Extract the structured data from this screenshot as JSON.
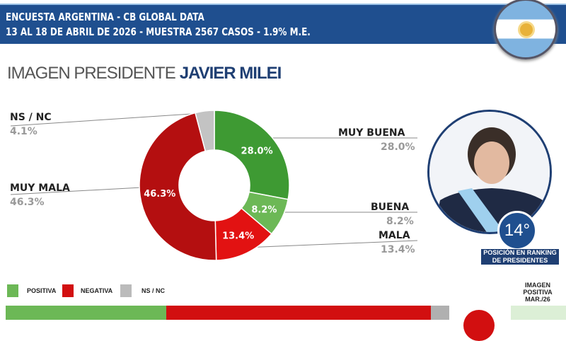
{
  "header": {
    "line1": "ENCUESTA ARGENTINA - CB GLOBAL DATA",
    "line2": "13 AL 18 DE ABRIL DE 2026 - MUESTRA 2567 CASOS - 1.9% M.E."
  },
  "title": {
    "prefix": "IMAGEN PRESIDENTE",
    "name": "JAVIER MILEI"
  },
  "ranking": {
    "position": "14°",
    "label": "POSICIÓN EN RANKING DE PRESIDENTES"
  },
  "side_label": "IMAGEN POSITIVA MAR./26",
  "colors": {
    "muy_buena": "#3e9a33",
    "buena": "#6cb856",
    "mala": "#e21212",
    "muy_mala": "#b40f10",
    "nsnc": "#c3c3c3",
    "positiva": "#6cb856",
    "negativa": "#d20f10"
  },
  "chart_data": [
    {
      "type": "pie",
      "title": "IMAGEN PRESIDENTE JAVIER MILEI",
      "donut": true,
      "slices": [
        {
          "label": "MUY BUENA",
          "value": 28.0,
          "text": "28.0%",
          "color": "#3e9a33"
        },
        {
          "label": "BUENA",
          "value": 8.2,
          "text": "8.2%",
          "color": "#6cb856"
        },
        {
          "label": "MALA",
          "value": 13.4,
          "text": "13.4%",
          "color": "#e21212"
        },
        {
          "label": "MUY MALA",
          "value": 46.3,
          "text": "46.3%",
          "color": "#b40f10"
        },
        {
          "label": "NS / NC",
          "value": 4.1,
          "text": "4.1%",
          "color": "#c3c3c3"
        }
      ]
    },
    {
      "type": "bar",
      "stacked": true,
      "legend": [
        "POSITIVA",
        "NEGATIVA",
        "NS / NC"
      ],
      "values": [
        36.2,
        59.7,
        4.1
      ],
      "colors": [
        "#6cb856",
        "#d20f10",
        "#b0b0b0"
      ]
    }
  ]
}
